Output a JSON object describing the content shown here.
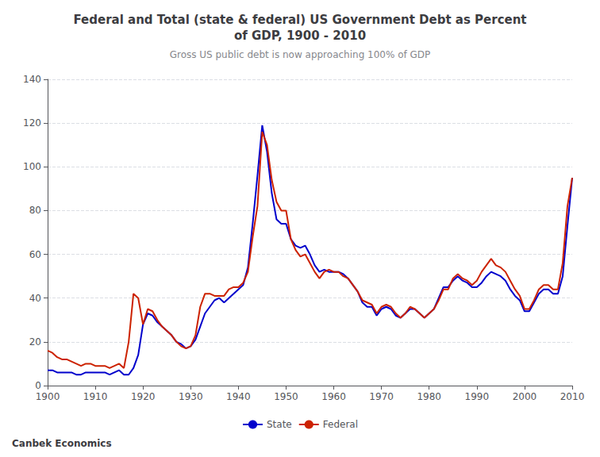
{
  "chart_data": {
    "type": "line",
    "title": "Federal and Total (state & federal) US Government Debt as Percent\nof GDP, 1900 - 2010",
    "subtitle": "Gross US public debt is now approaching 100% of GDP",
    "annotations": [
      {
        "text": "Canbek Economics"
      }
    ],
    "x": [
      1900,
      1901,
      1902,
      1903,
      1904,
      1905,
      1906,
      1907,
      1908,
      1909,
      1910,
      1911,
      1912,
      1913,
      1914,
      1915,
      1916,
      1917,
      1918,
      1919,
      1920,
      1921,
      1922,
      1923,
      1924,
      1925,
      1926,
      1927,
      1928,
      1929,
      1930,
      1931,
      1932,
      1933,
      1934,
      1935,
      1936,
      1937,
      1938,
      1939,
      1940,
      1941,
      1942,
      1943,
      1944,
      1945,
      1946,
      1947,
      1948,
      1949,
      1950,
      1951,
      1952,
      1953,
      1954,
      1955,
      1956,
      1957,
      1958,
      1959,
      1960,
      1961,
      1962,
      1963,
      1964,
      1965,
      1966,
      1967,
      1968,
      1969,
      1970,
      1971,
      1972,
      1973,
      1974,
      1975,
      1976,
      1977,
      1978,
      1979,
      1980,
      1981,
      1982,
      1983,
      1984,
      1985,
      1986,
      1987,
      1988,
      1989,
      1990,
      1991,
      1992,
      1993,
      1994,
      1995,
      1996,
      1997,
      1998,
      1999,
      2000,
      2001,
      2002,
      2003,
      2004,
      2005,
      2006,
      2007,
      2008,
      2009,
      2010
    ],
    "series": [
      {
        "name": "State",
        "color": "#0000CC",
        "values": [
          7,
          7,
          6,
          6,
          6,
          6,
          5,
          5,
          6,
          6,
          6,
          6,
          6,
          5,
          6,
          7,
          5,
          5,
          8,
          14,
          28,
          33,
          32,
          29,
          27,
          25,
          23,
          20,
          19,
          17,
          18,
          21,
          27,
          33,
          36,
          39,
          40,
          38,
          40,
          42,
          44,
          46,
          54,
          74,
          96,
          119,
          107,
          88,
          76,
          74,
          74,
          67,
          64,
          63,
          64,
          60,
          55,
          52,
          53,
          52,
          52,
          52,
          51,
          49,
          46,
          43,
          38,
          36,
          36,
          32,
          35,
          36,
          35,
          32,
          31,
          33,
          35,
          35,
          33,
          31,
          33,
          35,
          40,
          45,
          45,
          48,
          50,
          48,
          47,
          45,
          45,
          47,
          50,
          52,
          51,
          50,
          48,
          44,
          41,
          39,
          34,
          34,
          38,
          42,
          44,
          44,
          42,
          42,
          50,
          73,
          95
        ]
      },
      {
        "name": "Federal",
        "color": "#CC2200",
        "values": [
          16,
          15,
          13,
          12,
          12,
          11,
          10,
          9,
          10,
          10,
          9,
          9,
          9,
          8,
          9,
          10,
          8,
          20,
          42,
          40,
          28,
          35,
          34,
          30,
          27,
          25,
          23,
          20,
          18,
          17,
          18,
          23,
          36,
          42,
          42,
          41,
          41,
          41,
          44,
          45,
          45,
          47,
          52,
          68,
          82,
          116,
          110,
          94,
          84,
          80,
          80,
          67,
          62,
          59,
          60,
          56,
          52,
          49,
          52,
          53,
          52,
          52,
          50,
          49,
          46,
          43,
          39,
          38,
          37,
          33,
          36,
          37,
          36,
          33,
          31,
          33,
          36,
          35,
          33,
          31,
          33,
          35,
          39,
          44,
          44,
          49,
          51,
          49,
          48,
          46,
          48,
          52,
          55,
          58,
          55,
          54,
          52,
          48,
          44,
          41,
          35,
          35,
          39,
          44,
          46,
          46,
          44,
          44,
          56,
          82,
          95
        ]
      }
    ],
    "xlim": [
      1900,
      2010
    ],
    "xticks": [
      1900,
      1910,
      1920,
      1930,
      1940,
      1950,
      1960,
      1970,
      1980,
      1990,
      2000,
      2010
    ],
    "ylim": [
      0,
      140
    ],
    "yticks": [
      0,
      20,
      40,
      60,
      80,
      100,
      120,
      140
    ],
    "grid": true,
    "legend": "bottom"
  }
}
